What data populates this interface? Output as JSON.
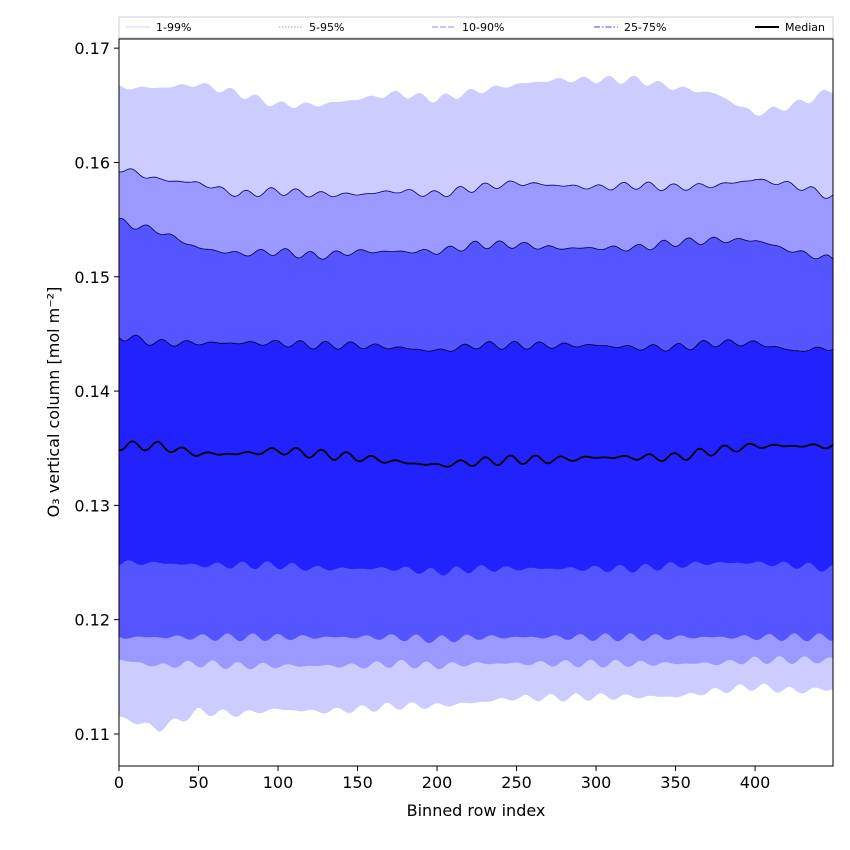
{
  "chart_data": {
    "type": "area",
    "xlabel": "Binned row index",
    "ylabel": "O₃ vertical column [mol m⁻²]",
    "xlim": [
      0,
      449
    ],
    "ylim": [
      0.1072,
      0.1708
    ],
    "x_ticks": [
      0,
      50,
      100,
      150,
      200,
      250,
      300,
      350,
      400
    ],
    "y_ticks": [
      0.11,
      0.12,
      0.13,
      0.14,
      0.15,
      0.16,
      0.17
    ],
    "grid": false,
    "legend_position": "top",
    "x": [
      0,
      25,
      50,
      75,
      100,
      125,
      150,
      175,
      200,
      225,
      250,
      275,
      300,
      325,
      350,
      375,
      400,
      425,
      449
    ],
    "series": [
      {
        "name": "1-99%",
        "fill": "#ccccff",
        "line": "#ccccff",
        "dash": "",
        "upper": [
          0.1665,
          0.1665,
          0.1668,
          0.166,
          0.165,
          0.165,
          0.1655,
          0.166,
          0.1655,
          0.1662,
          0.1668,
          0.1672,
          0.1672,
          0.1672,
          0.1665,
          0.166,
          0.1642,
          0.165,
          0.1663
        ],
        "lower": [
          0.1115,
          0.1105,
          0.112,
          0.1118,
          0.1122,
          0.112,
          0.1122,
          0.1125,
          0.1125,
          0.1128,
          0.1132,
          0.1132,
          0.1133,
          0.1133,
          0.1133,
          0.1138,
          0.1142,
          0.1138,
          0.114
        ]
      },
      {
        "name": "5-95%",
        "fill": "#9999ff",
        "line": "#000066",
        "dash": "1.5,1.5",
        "upper": [
          0.1595,
          0.1585,
          0.1582,
          0.1572,
          0.1575,
          0.1572,
          0.1572,
          0.1575,
          0.1572,
          0.1578,
          0.1582,
          0.158,
          0.1578,
          0.158,
          0.1578,
          0.158,
          0.1585,
          0.158,
          0.157
        ],
        "lower": [
          0.1165,
          0.116,
          0.1162,
          0.116,
          0.116,
          0.116,
          0.116,
          0.1162,
          0.116,
          0.1162,
          0.1162,
          0.1162,
          0.1162,
          0.1162,
          0.1162,
          0.1162,
          0.1165,
          0.1165,
          0.1165
        ]
      },
      {
        "name": "10-90%",
        "fill": "#5555ff",
        "line": "#000044",
        "dash": "6,2",
        "upper": [
          0.1548,
          0.154,
          0.1525,
          0.152,
          0.1522,
          0.1518,
          0.1522,
          0.1522,
          0.1522,
          0.1528,
          0.1528,
          0.1525,
          0.1525,
          0.1525,
          0.153,
          0.1532,
          0.1532,
          0.1522,
          0.1515
        ],
        "lower": [
          0.1185,
          0.1185,
          0.1185,
          0.1185,
          0.1185,
          0.1185,
          0.1185,
          0.1185,
          0.1183,
          0.1185,
          0.1185,
          0.1185,
          0.1185,
          0.1185,
          0.1185,
          0.1185,
          0.1185,
          0.1185,
          0.1185
        ]
      },
      {
        "name": "25-75%",
        "fill": "#2222ff",
        "line": "#000022",
        "dash": "6,2,1.5,2",
        "upper": [
          0.1448,
          0.1442,
          0.1442,
          0.1442,
          0.1442,
          0.144,
          0.144,
          0.1438,
          0.1435,
          0.144,
          0.144,
          0.144,
          0.144,
          0.1438,
          0.1438,
          0.1442,
          0.1442,
          0.1435,
          0.1438
        ],
        "lower": [
          0.125,
          0.125,
          0.1248,
          0.1248,
          0.1248,
          0.1245,
          0.1245,
          0.1245,
          0.1242,
          0.1245,
          0.1245,
          0.1245,
          0.1245,
          0.1245,
          0.1248,
          0.125,
          0.125,
          0.1248,
          0.1245
        ]
      }
    ],
    "median": {
      "name": "Median",
      "color": "#000000",
      "values": [
        0.1352,
        0.1352,
        0.1345,
        0.1345,
        0.1348,
        0.1345,
        0.1342,
        0.1338,
        0.1335,
        0.1338,
        0.134,
        0.134,
        0.1342,
        0.1342,
        0.1342,
        0.1348,
        0.1352,
        0.1352,
        0.1352
      ]
    }
  }
}
